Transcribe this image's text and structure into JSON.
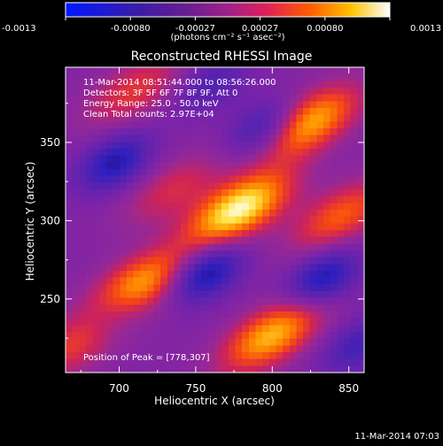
{
  "colorbar": {
    "ticks": [
      "-0.0013",
      "-0.00080",
      "-0.00027",
      "0.00027",
      "0.00080",
      "0.0013"
    ],
    "units": "(photons cm⁻² s⁻¹ asec⁻²)"
  },
  "chart": {
    "title": "Reconstructed RHESSI Image",
    "info_lines": [
      "11-Mar-2014 08:51:44.000 to 08:56:26.000",
      "Detectors: 3F 5F 6F 7F 8F 9F, Att 0",
      "Energy Range: 25.0 - 50.0 keV",
      "Clean    Total counts: 2.97E+04"
    ],
    "peak_label": "Position of Peak = [778,307]"
  },
  "footer": {
    "timestamp": "11-Mar-2014 07:03"
  },
  "chart_data": {
    "type": "heatmap",
    "title": "Reconstructed RHESSI Image",
    "xlabel": "Heliocentric X (arcsec)",
    "ylabel": "Heliocentric Y (arcsec)",
    "xlim": [
      665,
      860
    ],
    "ylim": [
      203,
      398
    ],
    "x_ticks": [
      700,
      750,
      800,
      850
    ],
    "y_ticks": [
      250,
      300,
      350
    ],
    "colorbar_range": [
      -0.0013,
      0.0013
    ],
    "colormap": "rhessi-blue-purple-red-yellow-white",
    "peak": {
      "x": 778,
      "y": 307
    },
    "sources": [
      {
        "x": 778,
        "y": 307,
        "intensity": 1.0
      },
      {
        "x": 823,
        "y": 362,
        "intensity": 0.82
      },
      {
        "x": 712,
        "y": 258,
        "intensity": 0.78
      },
      {
        "x": 800,
        "y": 227,
        "intensity": 0.8
      },
      {
        "x": 845,
        "y": 303,
        "intensity": 0.55
      },
      {
        "x": 710,
        "y": 383,
        "intensity": 0.42
      },
      {
        "x": 735,
        "y": 320,
        "intensity": 0.35
      },
      {
        "x": 673,
        "y": 222,
        "intensity": 0.45
      }
    ],
    "sinks": [
      {
        "x": 697,
        "y": 337,
        "intensity": 0.6
      },
      {
        "x": 757,
        "y": 267,
        "intensity": 0.7
      },
      {
        "x": 795,
        "y": 358,
        "intensity": 0.55
      },
      {
        "x": 833,
        "y": 263,
        "intensity": 0.65
      },
      {
        "x": 695,
        "y": 240,
        "intensity": 0.35
      },
      {
        "x": 760,
        "y": 388,
        "intensity": 0.35
      },
      {
        "x": 855,
        "y": 220,
        "intensity": 0.4
      }
    ]
  }
}
